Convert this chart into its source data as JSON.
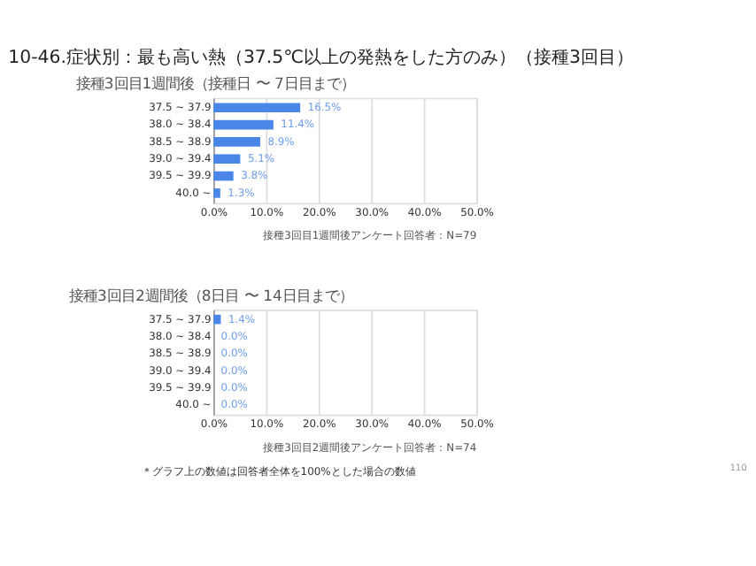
{
  "chart_data": [
    {
      "type": "bar",
      "orientation": "horizontal",
      "title": "10-46.症状別：最も高い熱（37.5℃以上の発熱をした方のみ）（接種3回目）",
      "subtitle": "接種3回目1週間後（接種日 〜 7日目まで）",
      "categories": [
        "37.5 ~ 37.9",
        "38.0 ~ 38.4",
        "38.5 ~ 38.9",
        "39.0 ~ 39.4",
        "39.5 ~ 39.9",
        "40.0 ~"
      ],
      "values": [
        16.5,
        11.4,
        8.9,
        5.1,
        3.8,
        1.3
      ],
      "color": "#4a86e8",
      "value_labels": [
        "16.5%",
        "11.4%",
        "8.9%",
        "5.1%",
        "3.8%",
        "1.3%"
      ],
      "xlim": [
        0,
        50
      ],
      "xticks": [
        {
          "value": 0,
          "label": "0.0%"
        },
        {
          "value": 10,
          "label": "10.0%"
        },
        {
          "value": 20,
          "label": "20.0%"
        },
        {
          "value": 30,
          "label": "30.0%"
        },
        {
          "value": 40,
          "label": "40.0%"
        },
        {
          "value": 50,
          "label": "50.0%"
        }
      ],
      "grid": "x",
      "annotations": [
        "接種3回目1週間後アンケート回答者：N=79"
      ]
    },
    {
      "type": "bar",
      "orientation": "horizontal",
      "subtitle": "接種3回目2週間後（8日目 〜 14日目まで）",
      "categories": [
        "37.5 ~ 37.9",
        "38.0 ~ 38.4",
        "38.5 ~ 38.9",
        "39.0 ~ 39.4",
        "39.5 ~ 39.9",
        "40.0 ~"
      ],
      "values": [
        1.4,
        0.0,
        0.0,
        0.0,
        0.0,
        0.0
      ],
      "color": "#4a86e8",
      "value_labels": [
        "1.4%",
        "0.0%",
        "0.0%",
        "0.0%",
        "0.0%",
        "0.0%"
      ],
      "xlim": [
        0,
        50
      ],
      "xticks": [
        {
          "value": 0,
          "label": "0.0%"
        },
        {
          "value": 10,
          "label": "10.0%"
        },
        {
          "value": 20,
          "label": "20.0%"
        },
        {
          "value": 30,
          "label": "30.0%"
        },
        {
          "value": 40,
          "label": "40.0%"
        },
        {
          "value": 50,
          "label": "50.0%"
        }
      ],
      "grid": "x",
      "annotations": [
        "接種3回目2週間後アンケート回答者：N=74",
        "＊グラフ上の数値は回答者全体を100%とした場合の数値",
        "110"
      ]
    }
  ]
}
